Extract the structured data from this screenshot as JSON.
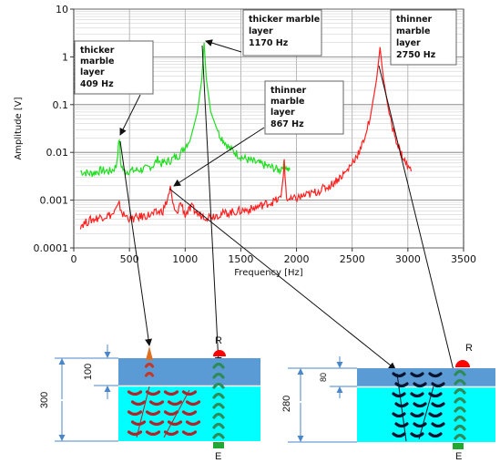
{
  "chart_data": {
    "type": "line",
    "title": "",
    "xlabel": "Frequency [Hz]",
    "ylabel": "Amplitude [V]",
    "xlim": [
      0,
      3500
    ],
    "ylim": [
      0.0001,
      10
    ],
    "yscale": "log",
    "x_ticks": [
      "0",
      "500",
      "1000",
      "1500",
      "2000",
      "2500",
      "3000",
      "3500"
    ],
    "y_ticks": [
      "10",
      "1",
      "0.1",
      "0.01",
      "0.001",
      "0.0001"
    ],
    "grid": true,
    "series": [
      {
        "color": "#22dd22",
        "points": [
          [
            60,
            0.004
          ],
          [
            150,
            0.0036
          ],
          [
            250,
            0.0042
          ],
          [
            330,
            0.004
          ],
          [
            380,
            0.005
          ],
          [
            395,
            0.01
          ],
          [
            409,
            0.02
          ],
          [
            420,
            0.006
          ],
          [
            450,
            0.004
          ],
          [
            550,
            0.0042
          ],
          [
            650,
            0.0045
          ],
          [
            720,
            0.0055
          ],
          [
            760,
            0.0075
          ],
          [
            780,
            0.0058
          ],
          [
            850,
            0.0065
          ],
          [
            950,
            0.009
          ],
          [
            1050,
            0.02
          ],
          [
            1110,
            0.07
          ],
          [
            1150,
            0.35
          ],
          [
            1170,
            2.0
          ],
          [
            1190,
            0.35
          ],
          [
            1230,
            0.07
          ],
          [
            1300,
            0.025
          ],
          [
            1400,
            0.012
          ],
          [
            1500,
            0.008
          ],
          [
            1600,
            0.0065
          ],
          [
            1700,
            0.0055
          ],
          [
            1780,
            0.0048
          ],
          [
            1850,
            0.0042
          ],
          [
            1880,
            0.0055
          ],
          [
            1900,
            0.0055
          ],
          [
            1920,
            0.0045
          ],
          [
            1940,
            0.0043
          ]
        ]
      },
      {
        "color": "#ff2222",
        "points": [
          [
            60,
            0.0003
          ],
          [
            150,
            0.00038
          ],
          [
            250,
            0.00045
          ],
          [
            350,
            0.0005
          ],
          [
            409,
            0.0008
          ],
          [
            440,
            0.0005
          ],
          [
            520,
            0.0004
          ],
          [
            600,
            0.00045
          ],
          [
            700,
            0.0005
          ],
          [
            800,
            0.0006
          ],
          [
            840,
            0.001
          ],
          [
            867,
            0.0018
          ],
          [
            890,
            0.0008
          ],
          [
            920,
            0.0005
          ],
          [
            960,
            0.0009
          ],
          [
            1000,
            0.0005
          ],
          [
            1060,
            0.0007
          ],
          [
            1120,
            0.0005
          ],
          [
            1200,
            0.00045
          ],
          [
            1300,
            0.0005
          ],
          [
            1400,
            0.00055
          ],
          [
            1500,
            0.0006
          ],
          [
            1600,
            0.00065
          ],
          [
            1700,
            0.0008
          ],
          [
            1800,
            0.00095
          ],
          [
            1860,
            0.0011
          ],
          [
            1890,
            0.006
          ],
          [
            1910,
            0.0011
          ],
          [
            1950,
            0.001
          ],
          [
            2050,
            0.0012
          ],
          [
            2150,
            0.0014
          ],
          [
            2300,
            0.002
          ],
          [
            2450,
            0.004
          ],
          [
            2580,
            0.012
          ],
          [
            2660,
            0.05
          ],
          [
            2720,
            0.35
          ],
          [
            2750,
            1.6
          ],
          [
            2780,
            0.35
          ],
          [
            2840,
            0.05
          ],
          [
            2920,
            0.012
          ],
          [
            2980,
            0.006
          ],
          [
            3030,
            0.004
          ]
        ]
      }
    ],
    "annotations": [
      {
        "lines": [
          "thicker",
          "marble",
          "layer",
          "409 Hz"
        ],
        "freq": 409,
        "amp": 0.02
      },
      {
        "lines": [
          "thicker marble",
          "layer",
          "1170 Hz"
        ],
        "freq": 1170,
        "amp": 2.0
      },
      {
        "lines": [
          "thinner",
          "marble",
          "layer",
          "867 Hz"
        ],
        "freq": 867,
        "amp": 0.0018
      },
      {
        "lines": [
          "thinner",
          "marble",
          "layer",
          "2750 Hz"
        ],
        "freq": 2750,
        "amp": 1.6
      }
    ]
  },
  "diagram_left": {
    "top_layer_thickness": "100",
    "total_thickness": "300",
    "receiver_label": "R",
    "emitter_label": "E"
  },
  "diagram_right": {
    "top_layer_thickness": "80",
    "total_thickness": "280",
    "receiver_label": "R",
    "emitter_label": "E"
  },
  "colors": {
    "top_layer": "#5b9bd5",
    "bottom_layer": "#00ffff",
    "receiver": "#ff0000",
    "emitter": "#22a832",
    "wave_left": "#b0242a",
    "wave_right": "#0a1430",
    "wave_center": "#2e8b57",
    "dimension_line": "#4a86c8"
  }
}
